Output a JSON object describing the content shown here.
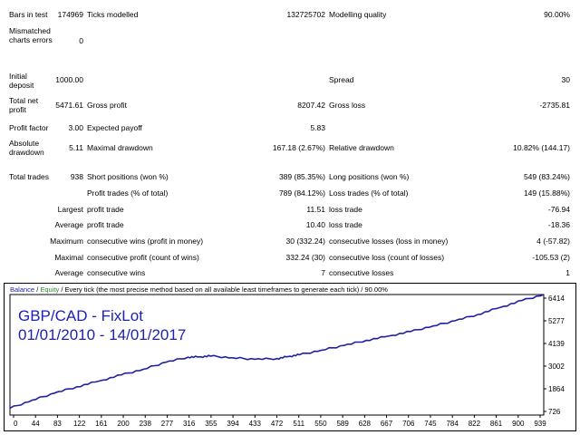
{
  "report": {
    "bars_in_test": {
      "label": "Bars in test",
      "value": "174969"
    },
    "ticks_modelled": {
      "label": "Ticks modelled",
      "value": "132725702"
    },
    "modeling_quality": {
      "label": "Modelling quality",
      "value": "90.00%"
    },
    "mismatched": {
      "label": "Mismatched charts errors",
      "value": "0"
    },
    "initial_deposit": {
      "label": "Initial deposit",
      "value": "1000.00"
    },
    "spread": {
      "label": "Spread",
      "value": "30"
    },
    "total_net_profit": {
      "label": "Total net profit",
      "value": "5471.61"
    },
    "gross_profit": {
      "label": "Gross profit",
      "value": "8207.42"
    },
    "gross_loss": {
      "label": "Gross loss",
      "value": "-2735.81"
    },
    "profit_factor": {
      "label": "Profit factor",
      "value": "3.00"
    },
    "expected_payoff": {
      "label": "Expected payoff",
      "value": "5.83"
    },
    "absolute_drawdown": {
      "label": "Absolute drawdown",
      "value": "5.11"
    },
    "maximal_drawdown": {
      "label": "Maximal drawdown",
      "value": "167.18 (2.67%)"
    },
    "relative_drawdown": {
      "label": "Relative drawdown",
      "value": "10.82% (144.17)"
    },
    "total_trades": {
      "label": "Total trades",
      "value": "938"
    },
    "short_positions": {
      "label": "Short positions (won %)",
      "value": "389 (85.35%)"
    },
    "long_positions": {
      "label": "Long positions (won %)",
      "value": "549 (83.24%)"
    },
    "profit_trades": {
      "label": "Profit trades (% of total)",
      "value": "789 (84.12%)"
    },
    "loss_trades": {
      "label": "Loss trades (% of total)",
      "value": "149 (15.88%)"
    },
    "largest": {
      "label": "Largest",
      "profit_label": "profit trade",
      "profit_value": "11.51",
      "loss_label": "loss trade",
      "loss_value": "-76.94"
    },
    "average": {
      "label": "Average",
      "profit_label": "profit trade",
      "profit_value": "10.40",
      "loss_label": "loss trade",
      "loss_value": "-18.36"
    },
    "maximum": {
      "label": "Maximum",
      "wins_label": "consecutive wins (profit in money)",
      "wins_value": "30 (332.24)",
      "losses_label": "consecutive losses (loss in money)",
      "losses_value": "4 (-57.82)"
    },
    "maximal": {
      "label": "Maximal",
      "wins_label": "consecutive profit (count of wins)",
      "wins_value": "332.24 (30)",
      "losses_label": "consecutive loss (count of losses)",
      "losses_value": "-105.53 (2)"
    },
    "average_consec": {
      "label": "Average",
      "wins_label": "consecutive wins",
      "wins_value": "7",
      "losses_label": "consecutive losses",
      "losses_value": "1"
    }
  },
  "chart_data": {
    "type": "line",
    "header": {
      "balance": "Balance",
      "sep1": " / ",
      "equity": "Equity",
      "rest": " / Every tick (the most precise method based on all available least timeframes to generate each tick) / 90.00%"
    },
    "overlay_title": "GBP/CAD - FixLot",
    "overlay_dates": "01/01/2010 - 14/01/2017",
    "x_ticks": [
      "0",
      "44",
      "83",
      "122",
      "161",
      "200",
      "238",
      "277",
      "316",
      "355",
      "394",
      "433",
      "472",
      "511",
      "550",
      "589",
      "628",
      "667",
      "706",
      "745",
      "784",
      "822",
      "861",
      "900",
      "939"
    ],
    "y_ticks": [
      "6414",
      "5277",
      "4139",
      "3002",
      "1864",
      "726"
    ],
    "xlim": [
      0,
      959
    ],
    "ylim": [
      726,
      6414
    ],
    "series": [
      {
        "name": "Balance",
        "color": "#1e22a0",
        "x": [
          0,
          40,
          80,
          120,
          160,
          200,
          240,
          280,
          320,
          340,
          360,
          400,
          440,
          480,
          500,
          520,
          560,
          600,
          640,
          680,
          720,
          760,
          800,
          840,
          880,
          920,
          959
        ],
        "y": [
          1050,
          1430,
          1760,
          2060,
          2330,
          2620,
          2890,
          3220,
          3460,
          3470,
          3510,
          3430,
          3360,
          3390,
          3490,
          3570,
          3790,
          4010,
          4250,
          4450,
          4670,
          4930,
          5180,
          5470,
          5800,
          6130,
          6414
        ]
      }
    ]
  },
  "colors": {
    "balance_line": "#1e22a0",
    "equity_text": "#2e8b2e",
    "overlay_text": "#1e22b4",
    "chart_border": "#000000"
  }
}
